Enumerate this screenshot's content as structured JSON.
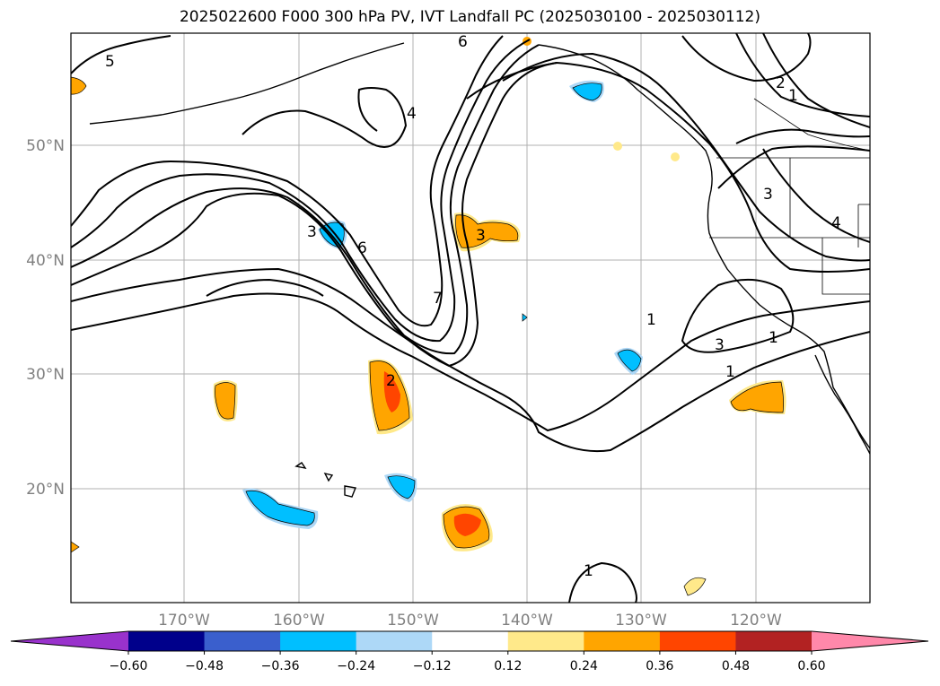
{
  "title": "2025022600 F000 300 hPa PV, IVT Landfall PC (2025030100 - 2025030112)",
  "latitude_labels": [
    "50°N",
    "40°N",
    "30°N",
    "20°N"
  ],
  "longitude_labels": [
    "170°W",
    "160°W",
    "150°W",
    "140°W",
    "130°W",
    "120°W"
  ],
  "contour_labels": [
    "5",
    "6",
    "3",
    "4",
    "6",
    "3",
    "7",
    "2",
    "1",
    "1",
    "3",
    "1",
    "2",
    "1",
    "3",
    "4",
    "1"
  ],
  "colorbar": {
    "ticks": [
      "−0.60",
      "−0.48",
      "−0.36",
      "−0.24",
      "−0.12",
      "0.12",
      "0.24",
      "0.36",
      "0.48",
      "0.60"
    ],
    "colors": [
      "#9932cc",
      "#00008b",
      "#3a5fcd",
      "#00bfff",
      "#add8f7",
      "#ffffff",
      "#ffe98a",
      "#ffa500",
      "#ff4500",
      "#b22222",
      "#ff88aa"
    ]
  },
  "shading_colors": {
    "positive_light": "#ffe98a",
    "positive_mid": "#ffa500",
    "positive_strong": "#ff4500",
    "negative_light": "#add8f7",
    "negative_mid": "#00bfff"
  }
}
